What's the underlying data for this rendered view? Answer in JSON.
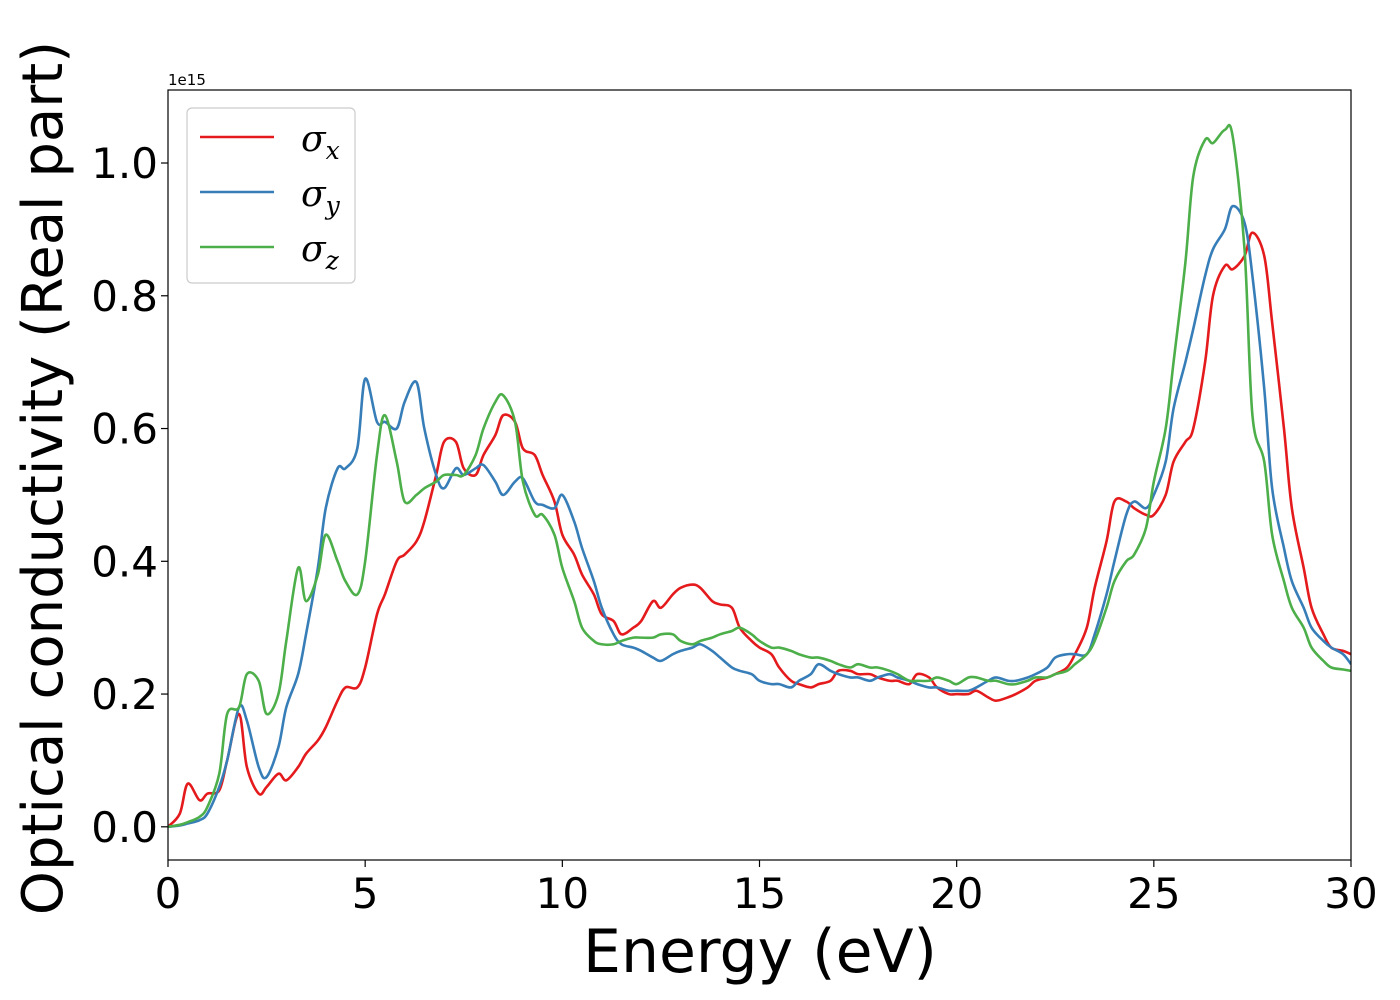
{
  "chart_data": {
    "type": "line",
    "xlabel": "Energy (eV)",
    "ylabel": "Optical conductivity (Real part)",
    "y_multiplier_label": "1e15",
    "xlim": [
      0,
      30
    ],
    "ylim": [
      -0.05,
      1.11
    ],
    "x_ticks": [
      0,
      5,
      10,
      15,
      20,
      25,
      30
    ],
    "x_tick_labels": [
      "0",
      "5",
      "10",
      "15",
      "20",
      "25",
      "30"
    ],
    "y_ticks": [
      0.0,
      0.2,
      0.4,
      0.6,
      0.8,
      1.0
    ],
    "y_tick_labels": [
      "0.0",
      "0.2",
      "0.4",
      "0.6",
      "0.8",
      "1.0"
    ],
    "grid": false,
    "legend_position": "upper-left",
    "series": [
      {
        "name": "σ",
        "subscript": "x",
        "color": "#e41a1c",
        "x": [
          0,
          0.3,
          0.5,
          0.8,
          1.0,
          1.3,
          1.5,
          1.8,
          2.0,
          2.3,
          2.5,
          2.8,
          3.0,
          3.3,
          3.5,
          3.8,
          4.0,
          4.3,
          4.5,
          4.8,
          5.0,
          5.3,
          5.5,
          5.8,
          6.0,
          6.3,
          6.5,
          6.8,
          7.0,
          7.3,
          7.5,
          7.8,
          8.0,
          8.3,
          8.5,
          8.8,
          9.0,
          9.3,
          9.5,
          9.8,
          10.0,
          10.3,
          10.5,
          10.8,
          11.0,
          11.3,
          11.5,
          11.8,
          12.0,
          12.3,
          12.5,
          12.8,
          13.0,
          13.3,
          13.5,
          13.8,
          14.0,
          14.3,
          14.5,
          14.8,
          15.0,
          15.3,
          15.5,
          15.8,
          16.0,
          16.3,
          16.5,
          16.8,
          17.0,
          17.3,
          17.5,
          17.8,
          18.0,
          18.3,
          18.5,
          18.8,
          19.0,
          19.3,
          19.5,
          19.8,
          20.0,
          20.3,
          20.5,
          20.8,
          21.0,
          21.3,
          21.5,
          21.8,
          22.0,
          22.3,
          22.5,
          22.8,
          23.0,
          23.3,
          23.5,
          23.8,
          24.0,
          24.3,
          24.5,
          24.8,
          25.0,
          25.3,
          25.5,
          25.8,
          26.0,
          26.3,
          26.5,
          26.8,
          27.0,
          27.3,
          27.5,
          27.8,
          28.0,
          28.3,
          28.5,
          28.8,
          29.0,
          29.3,
          29.5,
          29.8,
          30.0
        ],
        "y": [
          0.0,
          0.02,
          0.065,
          0.04,
          0.05,
          0.055,
          0.1,
          0.17,
          0.09,
          0.05,
          0.06,
          0.08,
          0.07,
          0.09,
          0.11,
          0.13,
          0.15,
          0.19,
          0.21,
          0.21,
          0.24,
          0.32,
          0.35,
          0.4,
          0.41,
          0.43,
          0.46,
          0.53,
          0.58,
          0.58,
          0.54,
          0.53,
          0.56,
          0.59,
          0.62,
          0.61,
          0.57,
          0.56,
          0.53,
          0.49,
          0.44,
          0.41,
          0.38,
          0.35,
          0.32,
          0.31,
          0.29,
          0.3,
          0.31,
          0.34,
          0.33,
          0.35,
          0.36,
          0.365,
          0.36,
          0.34,
          0.335,
          0.33,
          0.3,
          0.28,
          0.27,
          0.26,
          0.24,
          0.22,
          0.215,
          0.21,
          0.215,
          0.22,
          0.235,
          0.235,
          0.23,
          0.23,
          0.225,
          0.22,
          0.22,
          0.215,
          0.23,
          0.225,
          0.21,
          0.2,
          0.2,
          0.2,
          0.205,
          0.195,
          0.19,
          0.195,
          0.2,
          0.21,
          0.22,
          0.225,
          0.23,
          0.24,
          0.26,
          0.3,
          0.36,
          0.43,
          0.49,
          0.49,
          0.48,
          0.47,
          0.47,
          0.5,
          0.55,
          0.58,
          0.6,
          0.7,
          0.8,
          0.845,
          0.84,
          0.86,
          0.895,
          0.86,
          0.76,
          0.6,
          0.48,
          0.39,
          0.33,
          0.29,
          0.27,
          0.265,
          0.26
        ]
      },
      {
        "name": "σ",
        "subscript": "y",
        "color": "#377eb8",
        "x": [
          0,
          0.3,
          0.5,
          0.8,
          1.0,
          1.3,
          1.5,
          1.8,
          2.0,
          2.3,
          2.5,
          2.8,
          3.0,
          3.3,
          3.5,
          3.8,
          4.0,
          4.3,
          4.5,
          4.8,
          5.0,
          5.3,
          5.5,
          5.8,
          6.0,
          6.3,
          6.5,
          6.8,
          7.0,
          7.3,
          7.5,
          7.8,
          8.0,
          8.3,
          8.5,
          8.8,
          9.0,
          9.3,
          9.5,
          9.8,
          10.0,
          10.3,
          10.5,
          10.8,
          11.0,
          11.3,
          11.5,
          11.8,
          12.0,
          12.3,
          12.5,
          12.8,
          13.0,
          13.3,
          13.5,
          13.8,
          14.0,
          14.3,
          14.5,
          14.8,
          15.0,
          15.3,
          15.5,
          15.8,
          16.0,
          16.3,
          16.5,
          16.8,
          17.0,
          17.3,
          17.5,
          17.8,
          18.0,
          18.3,
          18.5,
          18.8,
          19.0,
          19.3,
          19.5,
          19.8,
          20.0,
          20.3,
          20.5,
          20.8,
          21.0,
          21.3,
          21.5,
          21.8,
          22.0,
          22.3,
          22.5,
          22.8,
          23.0,
          23.3,
          23.5,
          23.8,
          24.0,
          24.3,
          24.5,
          24.8,
          25.0,
          25.3,
          25.5,
          25.8,
          26.0,
          26.3,
          26.5,
          26.8,
          27.0,
          27.3,
          27.5,
          27.8,
          28.0,
          28.3,
          28.5,
          28.8,
          29.0,
          29.3,
          29.5,
          29.8,
          30.0
        ],
        "y": [
          0.0,
          0.002,
          0.005,
          0.01,
          0.02,
          0.06,
          0.1,
          0.18,
          0.16,
          0.09,
          0.075,
          0.12,
          0.18,
          0.23,
          0.29,
          0.39,
          0.48,
          0.54,
          0.54,
          0.57,
          0.675,
          0.61,
          0.61,
          0.6,
          0.64,
          0.67,
          0.6,
          0.53,
          0.51,
          0.54,
          0.53,
          0.54,
          0.545,
          0.52,
          0.5,
          0.52,
          0.525,
          0.49,
          0.485,
          0.48,
          0.5,
          0.46,
          0.42,
          0.37,
          0.33,
          0.29,
          0.275,
          0.27,
          0.265,
          0.255,
          0.25,
          0.26,
          0.265,
          0.27,
          0.275,
          0.265,
          0.255,
          0.24,
          0.235,
          0.23,
          0.22,
          0.215,
          0.215,
          0.21,
          0.22,
          0.23,
          0.245,
          0.235,
          0.23,
          0.225,
          0.225,
          0.22,
          0.225,
          0.23,
          0.225,
          0.22,
          0.215,
          0.21,
          0.21,
          0.205,
          0.205,
          0.205,
          0.21,
          0.22,
          0.225,
          0.22,
          0.22,
          0.225,
          0.23,
          0.24,
          0.255,
          0.26,
          0.26,
          0.26,
          0.29,
          0.35,
          0.4,
          0.47,
          0.49,
          0.48,
          0.5,
          0.55,
          0.63,
          0.7,
          0.75,
          0.83,
          0.87,
          0.9,
          0.935,
          0.91,
          0.83,
          0.66,
          0.51,
          0.42,
          0.37,
          0.33,
          0.3,
          0.28,
          0.27,
          0.26,
          0.245
        ]
      },
      {
        "name": "σ",
        "subscript": "z",
        "color": "#4daf4a",
        "x": [
          0,
          0.3,
          0.5,
          0.8,
          1.0,
          1.3,
          1.5,
          1.8,
          2.0,
          2.3,
          2.5,
          2.8,
          3.0,
          3.3,
          3.5,
          3.8,
          4.0,
          4.3,
          4.5,
          4.8,
          5.0,
          5.3,
          5.5,
          5.8,
          6.0,
          6.3,
          6.5,
          6.8,
          7.0,
          7.3,
          7.5,
          7.8,
          8.0,
          8.3,
          8.5,
          8.8,
          9.0,
          9.3,
          9.5,
          9.8,
          10.0,
          10.3,
          10.5,
          10.8,
          11.0,
          11.3,
          11.5,
          11.8,
          12.0,
          12.3,
          12.5,
          12.8,
          13.0,
          13.3,
          13.5,
          13.8,
          14.0,
          14.3,
          14.5,
          14.8,
          15.0,
          15.3,
          15.5,
          15.8,
          16.0,
          16.3,
          16.5,
          16.8,
          17.0,
          17.3,
          17.5,
          17.8,
          18.0,
          18.3,
          18.5,
          18.8,
          19.0,
          19.3,
          19.5,
          19.8,
          20.0,
          20.3,
          20.5,
          20.8,
          21.0,
          21.3,
          21.5,
          21.8,
          22.0,
          22.3,
          22.5,
          22.8,
          23.0,
          23.3,
          23.5,
          23.8,
          24.0,
          24.3,
          24.5,
          24.8,
          25.0,
          25.3,
          25.5,
          25.8,
          26.0,
          26.3,
          26.5,
          26.8,
          27.0,
          27.3,
          27.5,
          27.8,
          28.0,
          28.3,
          28.5,
          28.8,
          29.0,
          29.3,
          29.5,
          29.8,
          30.0
        ],
        "y": [
          0.0,
          0.003,
          0.007,
          0.015,
          0.03,
          0.08,
          0.17,
          0.18,
          0.23,
          0.22,
          0.17,
          0.2,
          0.28,
          0.39,
          0.34,
          0.38,
          0.44,
          0.4,
          0.37,
          0.35,
          0.4,
          0.56,
          0.62,
          0.55,
          0.49,
          0.5,
          0.51,
          0.52,
          0.53,
          0.53,
          0.53,
          0.56,
          0.6,
          0.64,
          0.65,
          0.61,
          0.52,
          0.47,
          0.47,
          0.44,
          0.39,
          0.34,
          0.3,
          0.28,
          0.275,
          0.275,
          0.28,
          0.285,
          0.285,
          0.285,
          0.29,
          0.29,
          0.28,
          0.275,
          0.28,
          0.285,
          0.29,
          0.295,
          0.3,
          0.29,
          0.28,
          0.27,
          0.27,
          0.265,
          0.26,
          0.255,
          0.255,
          0.25,
          0.245,
          0.24,
          0.245,
          0.24,
          0.24,
          0.235,
          0.23,
          0.22,
          0.22,
          0.22,
          0.225,
          0.22,
          0.215,
          0.225,
          0.225,
          0.22,
          0.22,
          0.215,
          0.215,
          0.22,
          0.225,
          0.225,
          0.23,
          0.235,
          0.245,
          0.26,
          0.28,
          0.33,
          0.37,
          0.4,
          0.41,
          0.45,
          0.52,
          0.6,
          0.7,
          0.85,
          0.98,
          1.035,
          1.03,
          1.05,
          1.04,
          0.87,
          0.62,
          0.55,
          0.44,
          0.37,
          0.33,
          0.3,
          0.27,
          0.25,
          0.24,
          0.237,
          0.235
        ]
      }
    ]
  }
}
